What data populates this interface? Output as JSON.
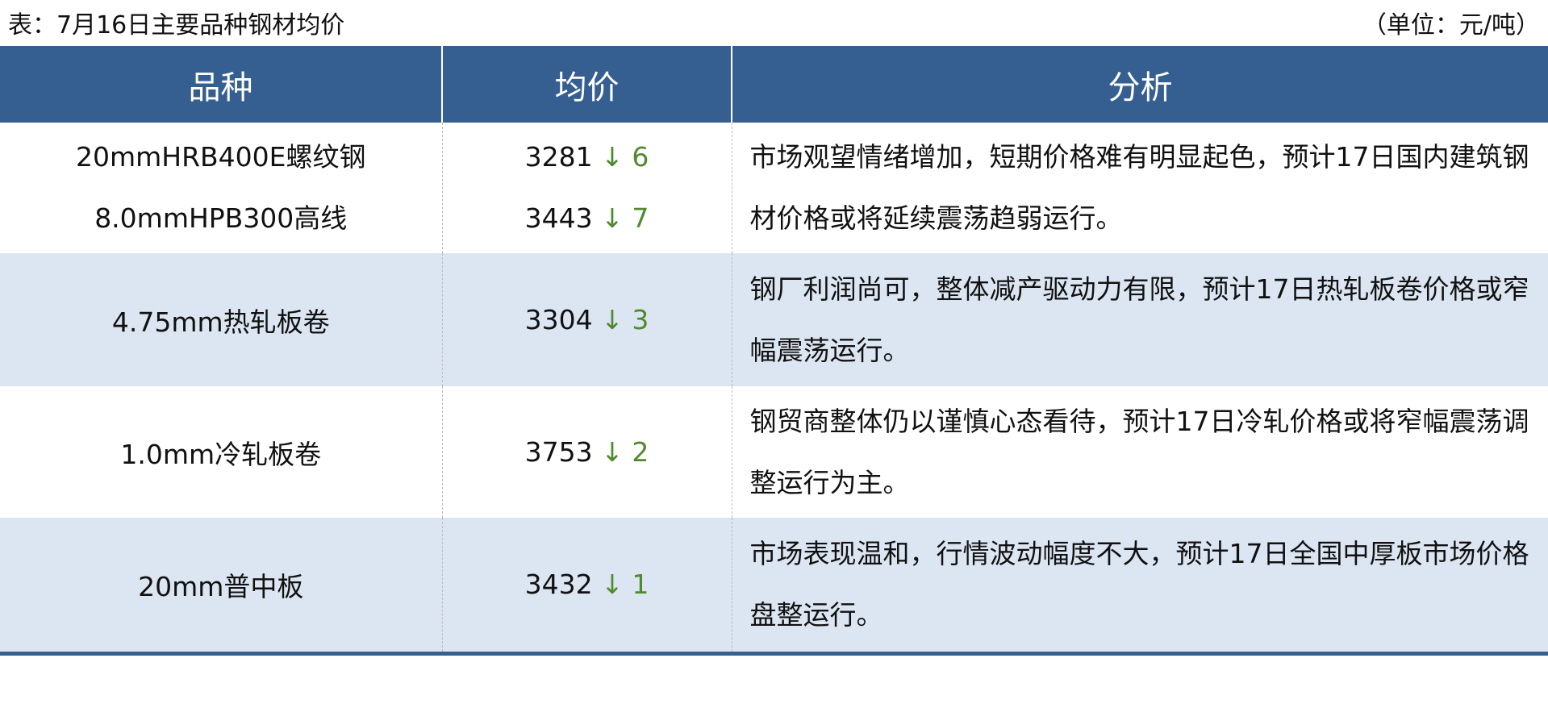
{
  "caption": {
    "title": "表：7月16日主要品种钢材均价",
    "unit": "（单位：元/吨）"
  },
  "headers": [
    "品种",
    "均价",
    "分析"
  ],
  "rows": [
    {
      "items": [
        {
          "name": "20mmHRB400E螺纹钢",
          "price": "3281",
          "arrow": "↓",
          "change": "6"
        },
        {
          "name": "8.0mmHPB300高线",
          "price": "3443",
          "arrow": "↓",
          "change": "7"
        }
      ],
      "analysis": "市场观望情绪增加，短期价格难有明显起色，预计17日国内建筑钢材价格或将延续震荡趋弱运行。"
    },
    {
      "items": [
        {
          "name": "4.75mm热轧板卷",
          "price": "3304",
          "arrow": "↓",
          "change": "3"
        }
      ],
      "analysis": "钢厂利润尚可，整体减产驱动力有限，预计17日热轧板卷价格或窄幅震荡运行。"
    },
    {
      "items": [
        {
          "name": "1.0mm冷轧板卷",
          "price": "3753",
          "arrow": "↓",
          "change": "2"
        }
      ],
      "analysis": "钢贸商整体仍以谨慎心态看待，预计17日冷轧价格或将窄幅震荡调整运行为主。"
    },
    {
      "items": [
        {
          "name": "20mm普中板",
          "price": "3432",
          "arrow": "↓",
          "change": "1"
        }
      ],
      "analysis": "市场表现温和，行情波动幅度不大，预计17日全国中厚板市场价格盘整运行。"
    }
  ],
  "colors": {
    "header": "#365f91",
    "alt_row": "#dce6f2",
    "down": "#4f8a2e"
  }
}
